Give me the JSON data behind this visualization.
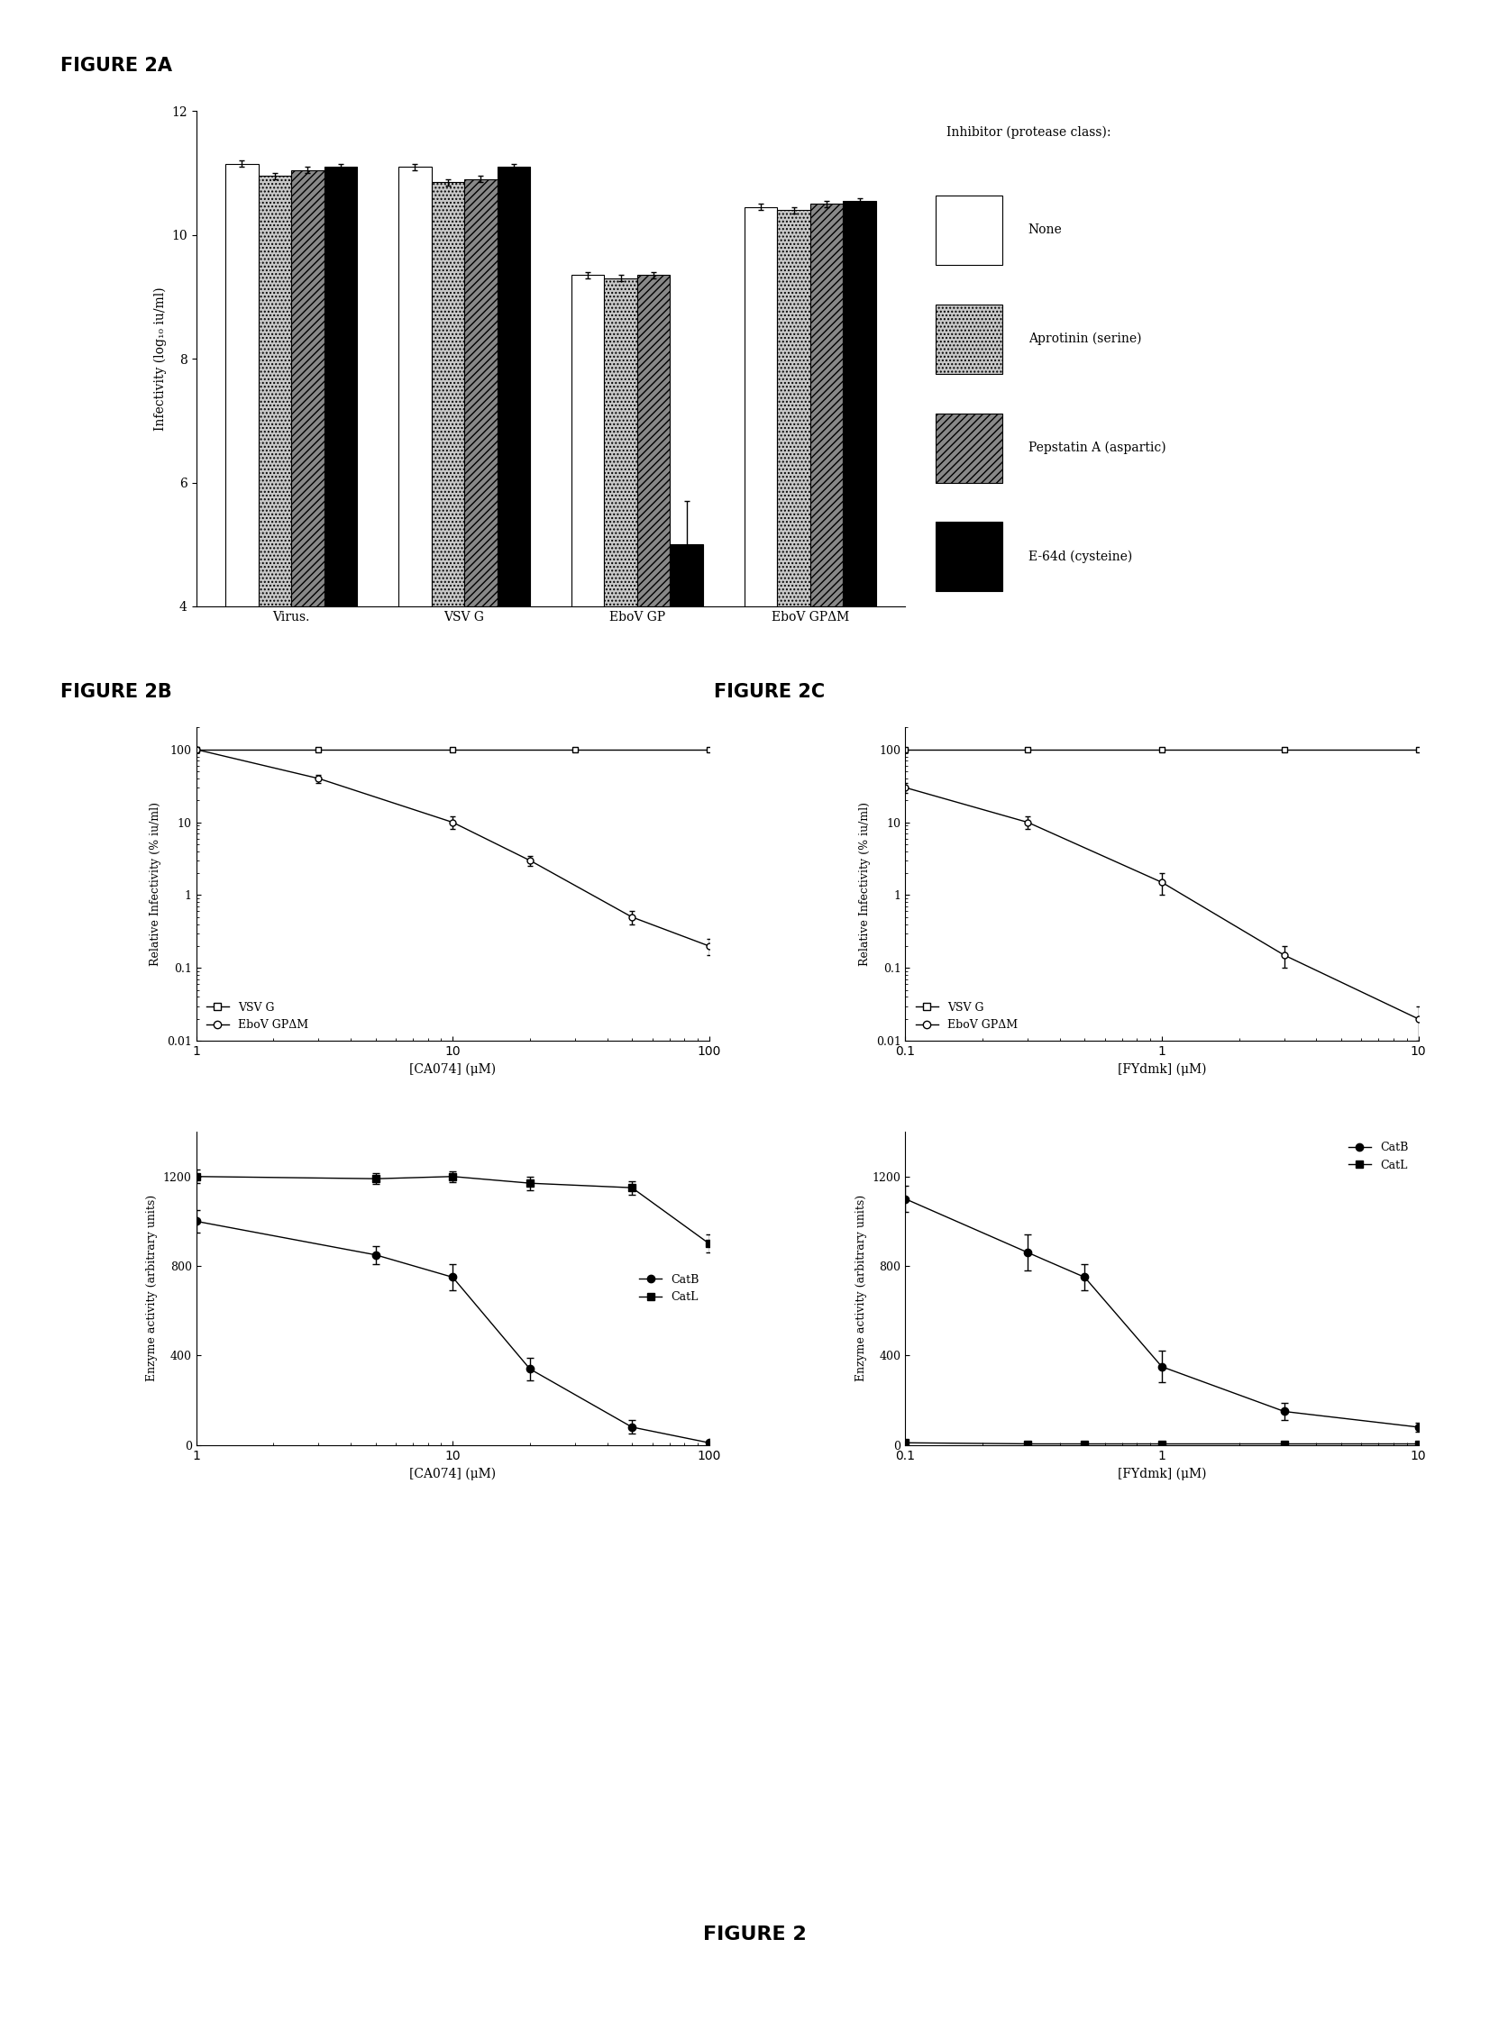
{
  "fig2a": {
    "groups": [
      "Virus.",
      "VSV G",
      "EboV GP",
      "EboV GPΔM"
    ],
    "none": [
      11.15,
      11.1,
      9.35,
      10.45
    ],
    "aprotinin": [
      10.95,
      10.85,
      9.3,
      10.4
    ],
    "pepstatin": [
      11.05,
      10.9,
      9.35,
      10.5
    ],
    "e64d": [
      11.1,
      11.1,
      5.0,
      10.55
    ],
    "none_err": [
      0.05,
      0.05,
      0.05,
      0.05
    ],
    "aprotinin_err": [
      0.05,
      0.05,
      0.05,
      0.05
    ],
    "pepstatin_err": [
      0.05,
      0.05,
      0.05,
      0.05
    ],
    "e64d_err": [
      0.05,
      0.05,
      0.7,
      0.05
    ],
    "ylim": [
      4,
      12
    ],
    "yticks": [
      4,
      6,
      8,
      10,
      12
    ],
    "ylabel": "Infectivity (log₁₀ iu/ml)"
  },
  "fig2b_inf": {
    "vsv_x": [
      1,
      3,
      10,
      30,
      100
    ],
    "vsv_y": [
      100,
      100,
      100,
      100,
      100
    ],
    "vsv_yerr": [
      3,
      3,
      3,
      3,
      3
    ],
    "ebov_x": [
      1,
      3,
      10,
      20,
      50,
      100
    ],
    "ebov_y": [
      100,
      40,
      10,
      3,
      0.5,
      0.2
    ],
    "ebov_yerr": [
      8,
      5,
      2,
      0.5,
      0.1,
      0.05
    ],
    "xlabel": "[CA074] (μM)",
    "ylabel": "Relative Infectivity (% iu/ml)"
  },
  "fig2b_enz": {
    "catb_x": [
      1,
      5,
      10,
      20,
      50,
      100
    ],
    "catb_y": [
      1000,
      850,
      750,
      340,
      80,
      10
    ],
    "catb_yerr": [
      50,
      40,
      60,
      50,
      30,
      10
    ],
    "catl_x": [
      1,
      5,
      10,
      20,
      50,
      100
    ],
    "catl_y": [
      1200,
      1190,
      1200,
      1170,
      1150,
      900
    ],
    "catl_yerr": [
      30,
      25,
      25,
      30,
      30,
      40
    ],
    "xlabel": "[CA074] (μM)",
    "ylabel": "Enzyme activity (arbitrary units)"
  },
  "fig2c_inf": {
    "vsv_x": [
      0.1,
      0.3,
      1,
      3,
      10
    ],
    "vsv_y": [
      100,
      100,
      100,
      100,
      100
    ],
    "vsv_yerr": [
      3,
      3,
      3,
      3,
      3
    ],
    "ebov_x": [
      0.1,
      0.3,
      1,
      3,
      10
    ],
    "ebov_y": [
      30,
      10,
      1.5,
      0.15,
      0.02
    ],
    "ebov_yerr": [
      5,
      2,
      0.5,
      0.05,
      0.01
    ],
    "xlabel": "[FYdmk] (μM)",
    "ylabel": "Relative Infectivity (% iu/ml)"
  },
  "fig2c_enz": {
    "catb_x": [
      0.1,
      0.3,
      0.5,
      1,
      3,
      10
    ],
    "catb_y": [
      1100,
      860,
      750,
      350,
      150,
      80
    ],
    "catb_yerr": [
      60,
      80,
      60,
      70,
      40,
      20
    ],
    "catl_x": [
      0.1,
      0.3,
      0.5,
      1,
      3,
      10
    ],
    "catl_y": [
      10,
      5,
      5,
      5,
      5,
      5
    ],
    "catl_yerr": [
      5,
      5,
      5,
      5,
      5,
      5
    ],
    "xlabel": "[FYdmk] (μM)",
    "ylabel": "Enzyme activity (arbitrary units)"
  }
}
